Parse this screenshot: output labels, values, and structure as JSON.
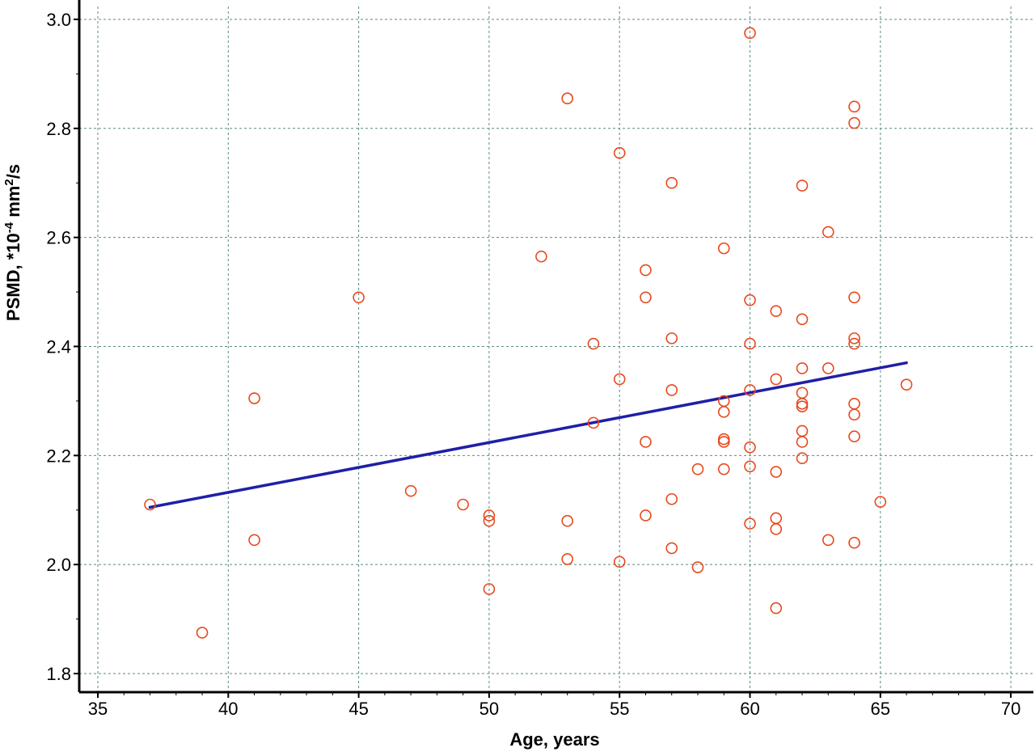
{
  "chart_data": {
    "type": "scatter",
    "title": "",
    "xlabel": "Age, years",
    "ylabel_main": "PSMD, *10",
    "ylabel_exp": "-4",
    "ylabel_unit": " mm",
    "ylabel_sup2": "2",
    "ylabel_tail": "/s",
    "xlim": [
      35,
      70
    ],
    "ylim": [
      1.8,
      3.0
    ],
    "x_ticks": [
      35,
      40,
      45,
      50,
      55,
      60,
      65,
      70
    ],
    "y_ticks": [
      1.8,
      2.0,
      2.2,
      2.4,
      2.6,
      2.8,
      3.0
    ],
    "y_tick_labels": [
      "1.8",
      "2.0",
      "2.2",
      "2.4",
      "2.6",
      "2.8",
      "3.0"
    ],
    "grid": true,
    "marker_color": "#e8481c",
    "line_color": "#1f1fa8",
    "series": [
      {
        "points": [
          [
            37,
            2.11
          ],
          [
            39,
            1.875
          ],
          [
            41,
            2.305
          ],
          [
            41,
            2.045
          ],
          [
            45,
            2.49
          ],
          [
            47,
            2.135
          ],
          [
            49,
            2.11
          ],
          [
            50,
            2.09
          ],
          [
            50,
            2.08
          ],
          [
            50,
            1.955
          ],
          [
            52,
            2.565
          ],
          [
            53,
            2.855
          ],
          [
            53,
            2.08
          ],
          [
            53,
            2.01
          ],
          [
            54,
            2.405
          ],
          [
            54,
            2.26
          ],
          [
            55,
            2.755
          ],
          [
            55,
            2.34
          ],
          [
            55,
            2.005
          ],
          [
            56,
            2.54
          ],
          [
            56,
            2.49
          ],
          [
            56,
            2.225
          ],
          [
            56,
            2.09
          ],
          [
            57,
            2.7
          ],
          [
            57,
            2.415
          ],
          [
            57,
            2.32
          ],
          [
            57,
            2.12
          ],
          [
            57,
            2.03
          ],
          [
            58,
            2.175
          ],
          [
            58,
            1.995
          ],
          [
            59,
            2.58
          ],
          [
            59,
            2.3
          ],
          [
            59,
            2.28
          ],
          [
            59,
            2.23
          ],
          [
            59,
            2.225
          ],
          [
            59,
            2.175
          ],
          [
            60,
            2.975
          ],
          [
            60,
            2.485
          ],
          [
            60,
            2.405
          ],
          [
            60,
            2.32
          ],
          [
            60,
            2.215
          ],
          [
            60,
            2.18
          ],
          [
            60,
            2.075
          ],
          [
            61,
            2.465
          ],
          [
            61,
            2.34
          ],
          [
            61,
            2.17
          ],
          [
            61,
            2.085
          ],
          [
            61,
            2.065
          ],
          [
            61,
            1.92
          ],
          [
            62,
            2.695
          ],
          [
            62,
            2.45
          ],
          [
            62,
            2.36
          ],
          [
            62,
            2.315
          ],
          [
            62,
            2.295
          ],
          [
            62,
            2.29
          ],
          [
            62,
            2.245
          ],
          [
            62,
            2.225
          ],
          [
            62,
            2.195
          ],
          [
            63,
            2.61
          ],
          [
            63,
            2.36
          ],
          [
            63,
            2.045
          ],
          [
            64,
            2.84
          ],
          [
            64,
            2.81
          ],
          [
            64,
            2.49
          ],
          [
            64,
            2.415
          ],
          [
            64,
            2.405
          ],
          [
            64,
            2.295
          ],
          [
            64,
            2.275
          ],
          [
            64,
            2.235
          ],
          [
            64,
            2.04
          ],
          [
            65,
            2.115
          ],
          [
            66,
            2.33
          ]
        ]
      }
    ],
    "regression_line": {
      "x": [
        37,
        66
      ],
      "y": [
        2.105,
        2.37
      ]
    }
  }
}
